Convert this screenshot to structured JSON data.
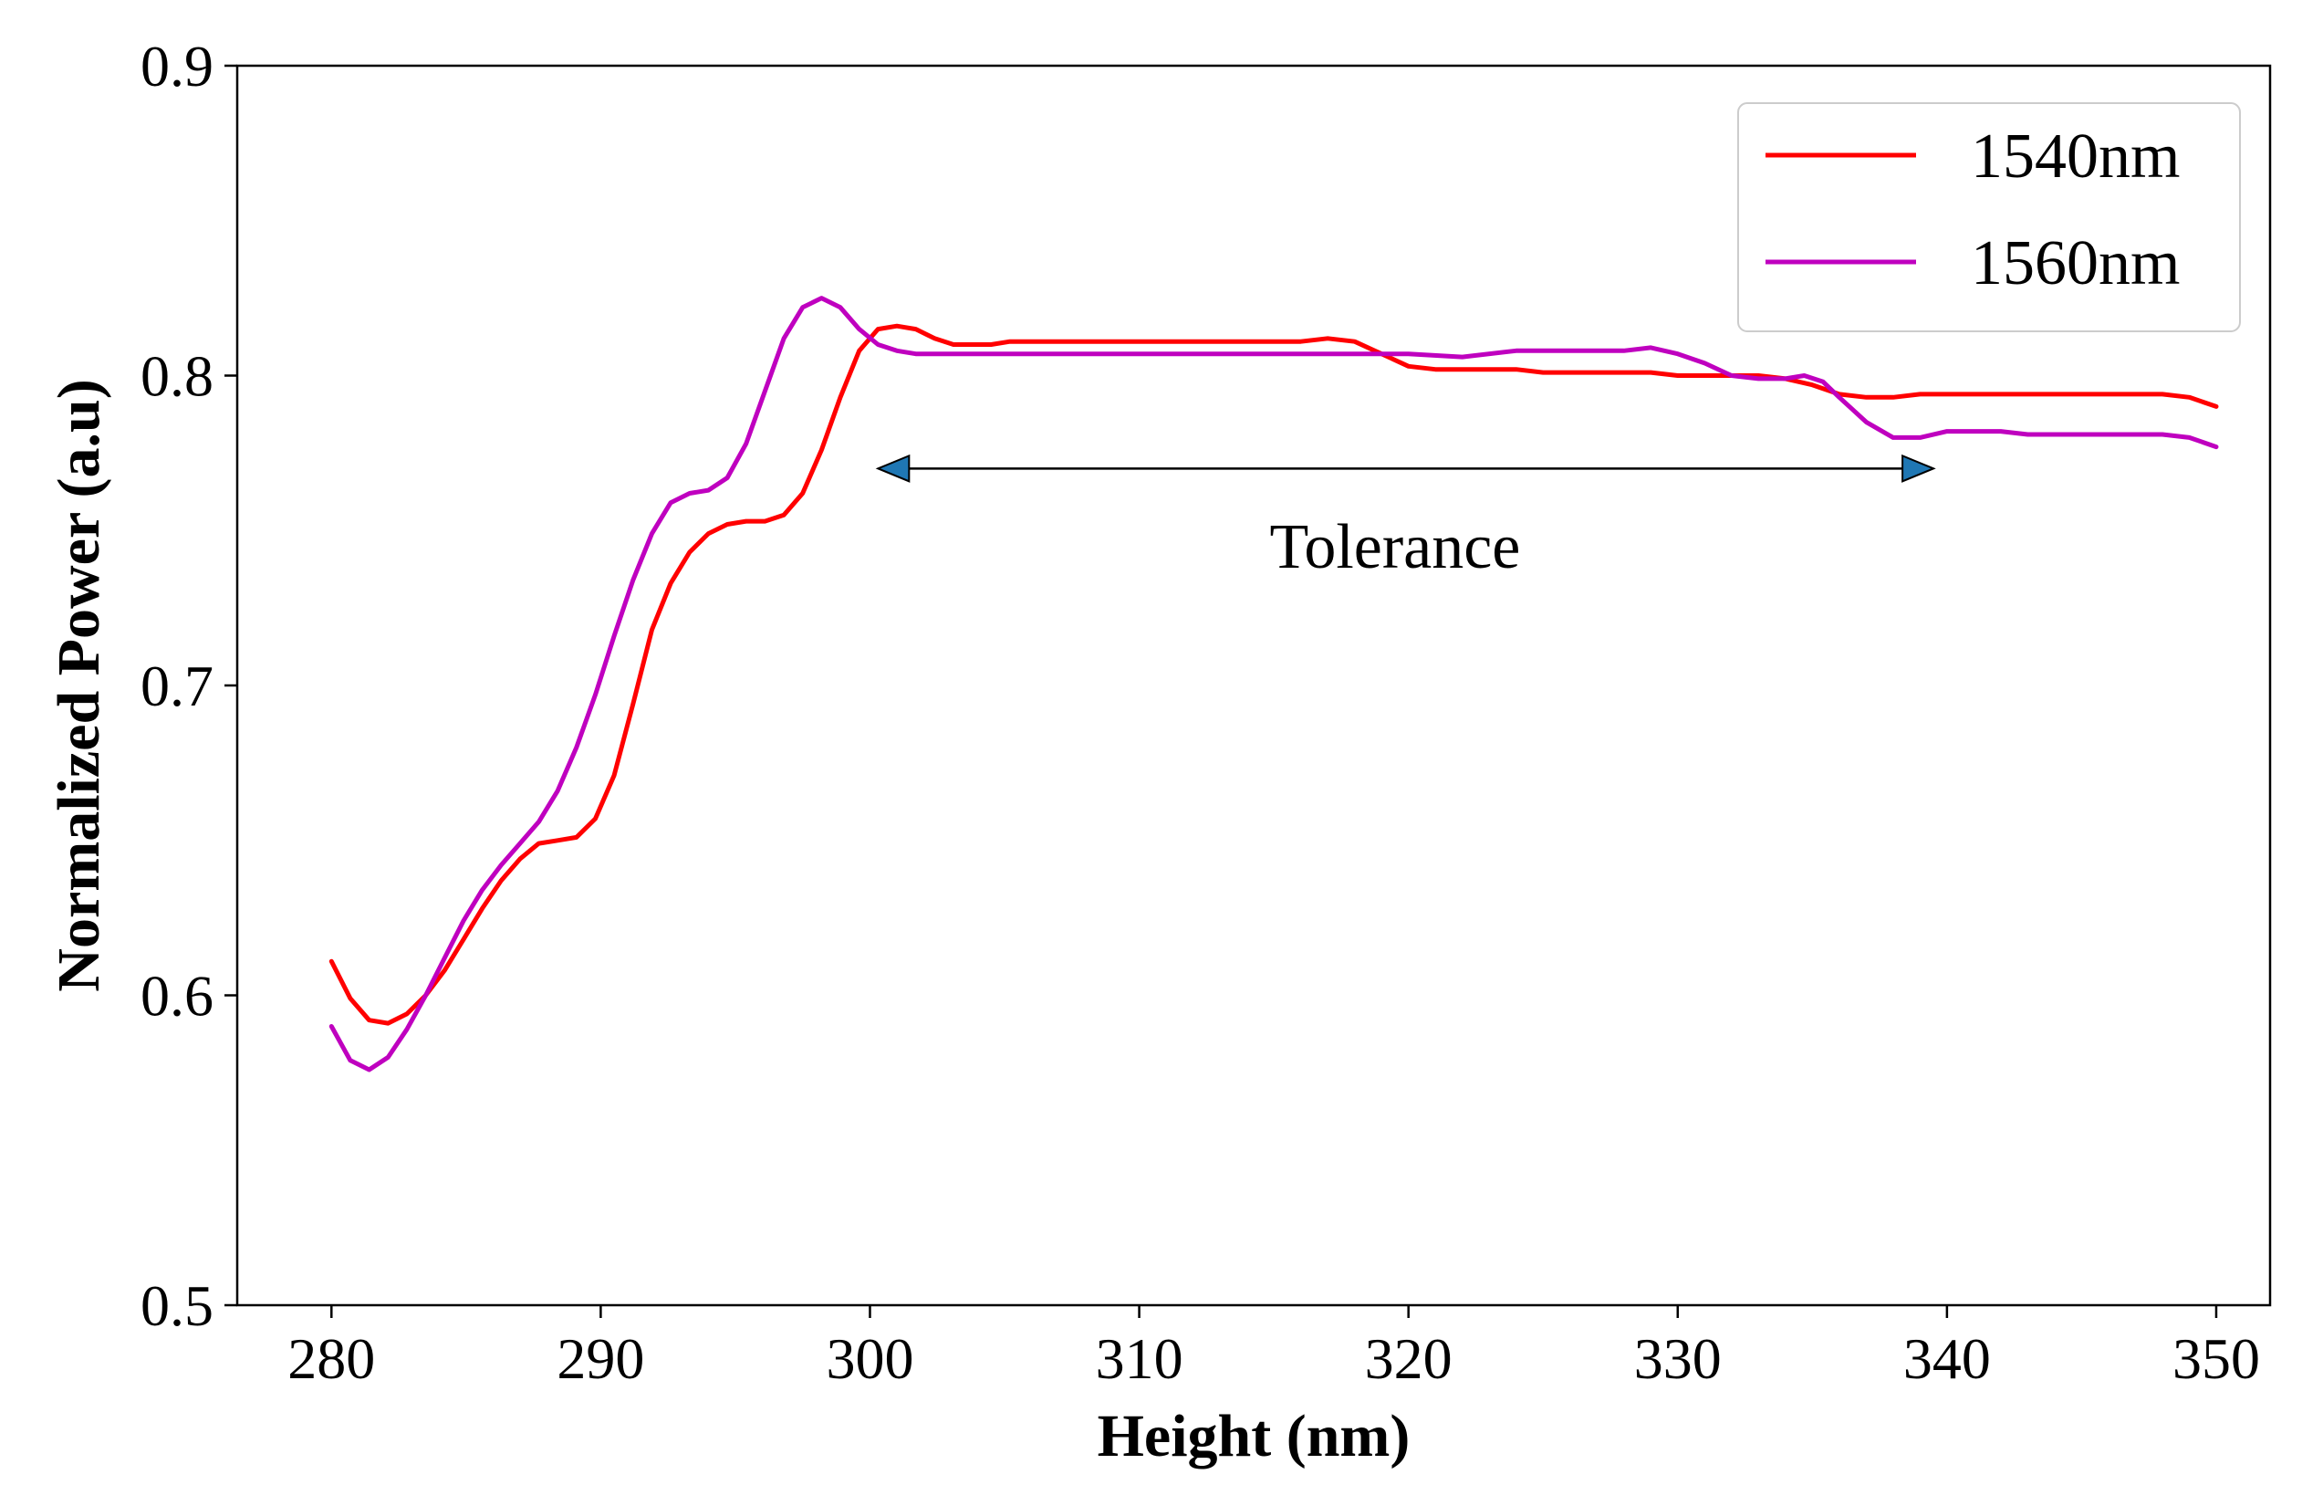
{
  "chart_data": {
    "type": "line",
    "title": "",
    "xlabel": "Height (nm)",
    "ylabel": "Normalized Power (a.u)",
    "xlim": [
      276.5,
      352
    ],
    "ylim": [
      0.5,
      0.9
    ],
    "xticks": [
      280,
      290,
      300,
      310,
      320,
      330,
      340,
      350
    ],
    "yticks": [
      0.5,
      0.6,
      0.7,
      0.8,
      0.9
    ],
    "xtick_labels": [
      "280",
      "290",
      "300",
      "310",
      "320",
      "330",
      "340",
      "350"
    ],
    "ytick_labels": [
      "0.5",
      "0.6",
      "0.7",
      "0.8",
      "0.9"
    ],
    "grid": false,
    "legend_position": "top-right",
    "series": [
      {
        "name": "1540nm",
        "color": "#ff0000",
        "x": [
          280,
          280.7,
          281.4,
          282.1,
          282.8,
          283.5,
          284.2,
          284.9,
          285.6,
          286.3,
          287,
          287.7,
          288.4,
          289.1,
          289.8,
          290.5,
          291.2,
          291.9,
          292.6,
          293.3,
          294,
          294.7,
          295.4,
          296.1,
          296.8,
          297.5,
          298.2,
          298.9,
          299.6,
          300.3,
          301,
          301.7,
          302.4,
          303.1,
          303.8,
          304.5,
          305.2,
          305.9,
          306.6,
          307.3,
          308,
          310,
          312,
          314,
          316,
          317,
          318,
          319,
          320,
          321,
          322,
          323,
          324,
          325,
          326,
          327,
          328,
          329,
          330,
          331,
          332,
          333,
          334,
          335,
          336,
          337,
          338,
          339,
          340,
          341,
          342,
          343,
          344,
          345,
          346,
          347,
          348,
          349,
          350
        ],
        "y": [
          0.611,
          0.599,
          0.592,
          0.591,
          0.594,
          0.6,
          0.608,
          0.618,
          0.628,
          0.637,
          0.644,
          0.649,
          0.65,
          0.651,
          0.657,
          0.671,
          0.694,
          0.718,
          0.733,
          0.743,
          0.749,
          0.752,
          0.753,
          0.753,
          0.755,
          0.762,
          0.776,
          0.793,
          0.808,
          0.815,
          0.816,
          0.815,
          0.812,
          0.81,
          0.81,
          0.81,
          0.811,
          0.811,
          0.811,
          0.811,
          0.811,
          0.811,
          0.811,
          0.811,
          0.811,
          0.812,
          0.811,
          0.807,
          0.803,
          0.802,
          0.802,
          0.802,
          0.802,
          0.801,
          0.801,
          0.801,
          0.801,
          0.801,
          0.8,
          0.8,
          0.8,
          0.8,
          0.799,
          0.797,
          0.794,
          0.793,
          0.793,
          0.794,
          0.794,
          0.794,
          0.794,
          0.794,
          0.794,
          0.794,
          0.794,
          0.794,
          0.794,
          0.793,
          0.79
        ]
      },
      {
        "name": "1560nm",
        "color": "#bf00bf",
        "x": [
          280,
          280.7,
          281.4,
          282.1,
          282.8,
          283.5,
          284.2,
          284.9,
          285.6,
          286.3,
          287,
          287.7,
          288.4,
          289.1,
          289.8,
          290.5,
          291.2,
          291.9,
          292.6,
          293.3,
          294,
          294.7,
          295.4,
          296.1,
          296.8,
          297.5,
          298.2,
          298.9,
          299.6,
          300.3,
          301,
          301.7,
          302.4,
          303.1,
          303.8,
          304.5,
          305.2,
          305.9,
          306.6,
          307.3,
          308,
          310,
          312,
          314,
          316,
          318,
          320,
          322,
          324,
          326,
          328,
          329,
          330,
          331,
          332,
          333,
          334,
          334.7,
          335.4,
          336,
          337,
          338,
          339,
          340,
          341,
          342,
          343,
          344,
          345,
          346,
          347,
          348,
          349,
          350
        ],
        "y": [
          0.59,
          0.579,
          0.576,
          0.58,
          0.589,
          0.6,
          0.612,
          0.624,
          0.634,
          0.642,
          0.649,
          0.656,
          0.666,
          0.68,
          0.697,
          0.716,
          0.734,
          0.749,
          0.759,
          0.762,
          0.763,
          0.767,
          0.778,
          0.795,
          0.812,
          0.822,
          0.825,
          0.822,
          0.815,
          0.81,
          0.808,
          0.807,
          0.807,
          0.807,
          0.807,
          0.807,
          0.807,
          0.807,
          0.807,
          0.807,
          0.807,
          0.807,
          0.807,
          0.807,
          0.807,
          0.807,
          0.807,
          0.806,
          0.808,
          0.808,
          0.808,
          0.809,
          0.807,
          0.804,
          0.8,
          0.799,
          0.799,
          0.8,
          0.798,
          0.793,
          0.785,
          0.78,
          0.78,
          0.782,
          0.782,
          0.782,
          0.781,
          0.781,
          0.781,
          0.781,
          0.781,
          0.781,
          0.78,
          0.777
        ]
      }
    ],
    "annotations": [
      {
        "text": "Tolerance",
        "type": "double-arrow",
        "x_start": 300.3,
        "x_end": 339.5,
        "y": 0.77,
        "arrow_color": "#1f77b4",
        "text_x": 319.5,
        "text_y": 0.745
      }
    ]
  }
}
